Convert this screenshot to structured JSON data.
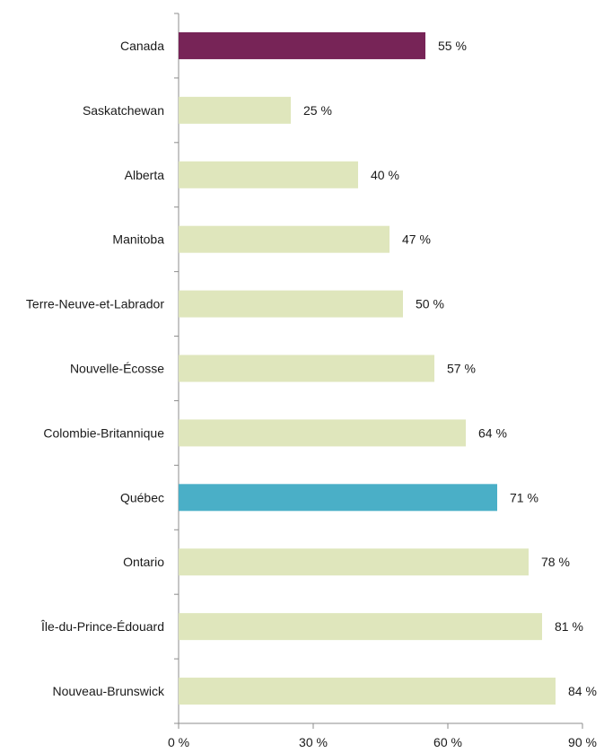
{
  "chart_data": {
    "type": "bar",
    "orientation": "horizontal",
    "title": "",
    "xlabel": "",
    "ylabel": "",
    "categories": [
      "Canada",
      "Saskatchewan",
      "Alberta",
      "Manitoba",
      "Terre-Neuve-et-Labrador",
      "Nouvelle-Écosse",
      "Colombie-Britannique",
      "Québec",
      "Ontario",
      "Île-du-Prince-Édouard",
      "Nouveau-Brunswick"
    ],
    "values": [
      55,
      25,
      40,
      47,
      50,
      57,
      64,
      71,
      78,
      81,
      84
    ],
    "value_labels": [
      "55  %",
      "25  %",
      "40  %",
      "47  %",
      "50  %",
      "57  %",
      "64  %",
      "71  %",
      "78  %",
      "81  %",
      "84  %"
    ],
    "bar_colors": [
      "#772457",
      "#dfe6bc",
      "#dfe6bc",
      "#dfe6bc",
      "#dfe6bc",
      "#dfe6bc",
      "#dfe6bc",
      "#4aafc7",
      "#dfe6bc",
      "#dfe6bc",
      "#dfe6bc"
    ],
    "xlim": [
      0,
      90
    ],
    "x_ticks": [
      0,
      30,
      60,
      90
    ],
    "x_tick_labels": [
      "0  %",
      "30  %",
      "60  %",
      "90  %"
    ],
    "grid": false,
    "legend": "none"
  }
}
